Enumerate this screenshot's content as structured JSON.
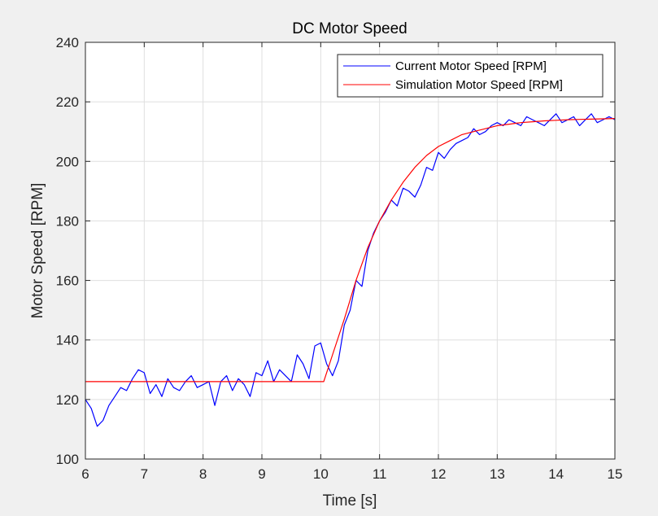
{
  "chart_data": {
    "type": "line",
    "title": "DC Motor Speed",
    "xlabel": "Time [s]",
    "ylabel": "Motor Speed [RPM]",
    "xlim": [
      6,
      15
    ],
    "ylim": [
      100,
      240
    ],
    "xticks": [
      6,
      7,
      8,
      9,
      10,
      11,
      12,
      13,
      14,
      15
    ],
    "yticks": [
      100,
      120,
      140,
      160,
      180,
      200,
      220,
      240
    ],
    "grid": true,
    "legend_position": "top-right",
    "series": [
      {
        "name": "Current Motor Speed [RPM]",
        "color": "#0000ff",
        "x": [
          6.0,
          6.1,
          6.2,
          6.3,
          6.4,
          6.5,
          6.6,
          6.7,
          6.8,
          6.9,
          7.0,
          7.1,
          7.2,
          7.3,
          7.4,
          7.5,
          7.6,
          7.7,
          7.8,
          7.9,
          8.0,
          8.1,
          8.2,
          8.3,
          8.4,
          8.5,
          8.6,
          8.7,
          8.8,
          8.9,
          9.0,
          9.1,
          9.2,
          9.3,
          9.4,
          9.5,
          9.6,
          9.7,
          9.8,
          9.9,
          10.0,
          10.1,
          10.2,
          10.3,
          10.4,
          10.5,
          10.6,
          10.7,
          10.8,
          10.9,
          11.0,
          11.1,
          11.2,
          11.3,
          11.4,
          11.5,
          11.6,
          11.7,
          11.8,
          11.9,
          12.0,
          12.1,
          12.2,
          12.3,
          12.4,
          12.5,
          12.6,
          12.7,
          12.8,
          12.9,
          13.0,
          13.1,
          13.2,
          13.3,
          13.4,
          13.5,
          13.6,
          13.7,
          13.8,
          13.9,
          14.0,
          14.1,
          14.2,
          14.3,
          14.4,
          14.5,
          14.6,
          14.7,
          14.8,
          14.9,
          15.0
        ],
        "y": [
          120,
          117,
          111,
          113,
          118,
          121,
          124,
          123,
          127,
          130,
          129,
          122,
          125,
          121,
          127,
          124,
          123,
          126,
          128,
          124,
          125,
          126,
          118,
          126,
          128,
          123,
          127,
          125,
          121,
          129,
          128,
          133,
          126,
          130,
          128,
          126,
          135,
          132,
          127,
          138,
          139,
          132,
          128,
          133,
          145,
          150,
          160,
          158,
          170,
          176,
          180,
          183,
          187,
          185,
          191,
          190,
          188,
          192,
          198,
          197,
          203,
          201,
          204,
          206,
          207,
          208,
          211,
          209,
          210,
          212,
          213,
          212,
          214,
          213,
          212,
          215,
          214,
          213,
          212,
          214,
          216,
          213,
          214,
          215,
          212,
          214,
          216,
          213,
          214,
          215,
          214
        ]
      },
      {
        "name": "Simulation Motor Speed [RPM]",
        "color": "#ff0000",
        "x": [
          6.0,
          7.0,
          8.0,
          9.0,
          10.0,
          10.05,
          10.2,
          10.4,
          10.6,
          10.8,
          11.0,
          11.2,
          11.4,
          11.6,
          11.8,
          12.0,
          12.2,
          12.4,
          12.6,
          12.8,
          13.0,
          13.2,
          13.4,
          13.6,
          13.8,
          14.0,
          14.2,
          14.4,
          14.6,
          14.8,
          15.0
        ],
        "y": [
          126,
          126,
          126,
          126,
          126,
          126,
          135,
          147,
          160,
          171,
          180,
          187,
          193,
          198,
          202,
          205,
          207,
          209,
          210,
          211,
          212,
          212.5,
          213,
          213.3,
          213.6,
          213.8,
          214,
          214.1,
          214.2,
          214.3,
          214.4
        ]
      }
    ]
  }
}
